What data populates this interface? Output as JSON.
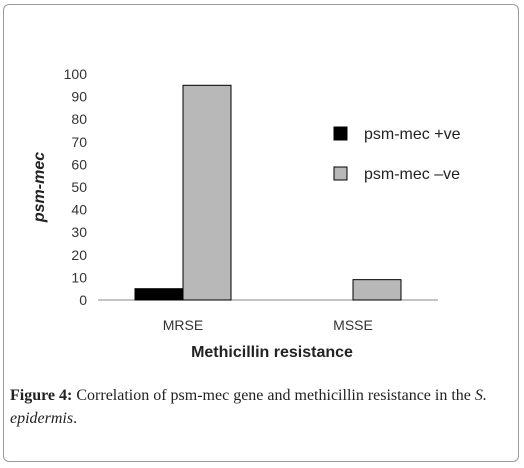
{
  "chart_data": {
    "type": "bar",
    "categories": [
      "MRSE",
      "MSSE"
    ],
    "series": [
      {
        "name": "psm-mec +ve",
        "values": [
          5,
          0
        ],
        "color": "#000000"
      },
      {
        "name": "psm-mec –ve",
        "values": [
          95,
          9
        ],
        "color": "#b8b8b8"
      }
    ],
    "xlabel": "Methicillin resistance",
    "ylabel": "psm-mec",
    "ylim": [
      0,
      100
    ],
    "yticks": [
      0,
      10,
      20,
      30,
      40,
      50,
      60,
      70,
      80,
      90,
      100
    ],
    "legend_position": "right",
    "grid": false
  },
  "caption": {
    "label": "Figure 4:",
    "text": " Correlation of psm-mec gene and methicillin resistance in the ",
    "species": "S. epidermis",
    "end": "."
  }
}
